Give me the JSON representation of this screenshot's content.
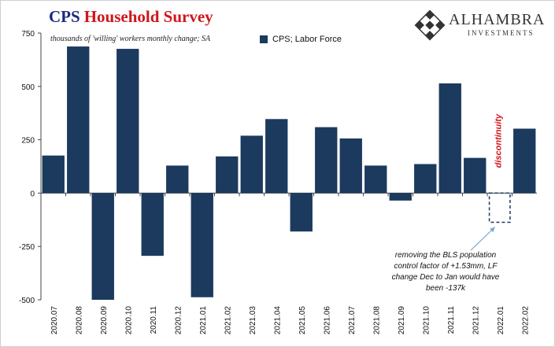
{
  "header": {
    "title_part1": "CPS",
    "title_part2": "Household Survey",
    "subtitle": "thousands of 'willing' workers monthly change; SA"
  },
  "legend": {
    "label": "CPS;  Labor Force"
  },
  "logo": {
    "brand": "ALHAMBRA",
    "sub": "INVESTMENTS"
  },
  "annotation": {
    "vertical": "discontinuity",
    "note": "removing the BLS population control factor of +1.53mm, LF change Dec to Jan would have  been -137k"
  },
  "colors": {
    "bar": "#1b3a5e",
    "title_blue": "#1b2a7a",
    "title_red": "#d0161b",
    "annotation_red": "#d0161b"
  },
  "chart_data": {
    "type": "bar",
    "categories": [
      "2020.07",
      "2020.08",
      "2020.09",
      "2020.10",
      "2020.11",
      "2020.12",
      "2021.01",
      "2021.02",
      "2021.03",
      "2021.04",
      "2021.05",
      "2021.06",
      "2021.07",
      "2021.08",
      "2021.09",
      "2021.10",
      "2021.11",
      "2021.12",
      "2022.01",
      "2022.02"
    ],
    "series": [
      {
        "name": "CPS;  Labor Force",
        "values": [
          176,
          687,
          -500,
          676,
          -294,
          129,
          -488,
          172,
          269,
          347,
          -180,
          309,
          256,
          129,
          -35,
          136,
          514,
          165,
          null,
          302
        ]
      }
    ],
    "counterfactual": {
      "category": "2022.01",
      "value": -137
    },
    "ylim": [
      -500,
      750
    ],
    "yticks": [
      -500,
      -250,
      0,
      250,
      500,
      750
    ],
    "xlabel": "",
    "ylabel": "",
    "grid": false
  }
}
